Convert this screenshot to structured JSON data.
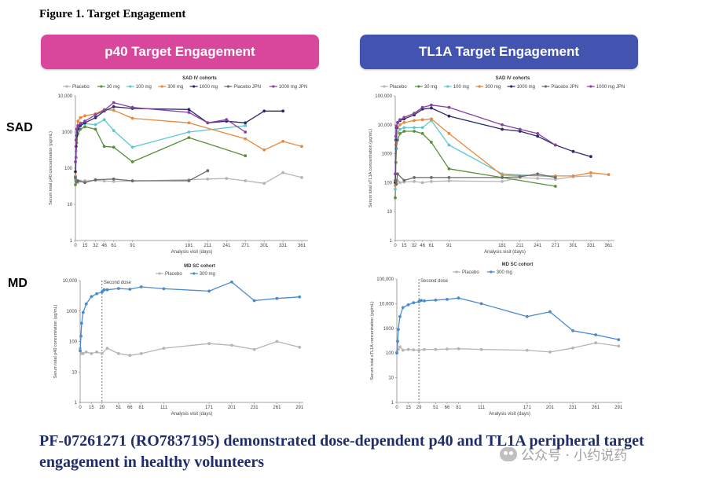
{
  "figure_title": "Figure 1. Target Engagement",
  "banners": {
    "p40": {
      "label": "p40 Target Engagement",
      "color": "#d9479d"
    },
    "tl1a": {
      "label": "TL1A Target Engagement",
      "color": "#4254b0"
    }
  },
  "row_labels": {
    "sad": "SAD",
    "md": "MD"
  },
  "footer": "PF-07261271 (RO7837195) demonstrated dose-dependent p40 and TL1A peripheral target engagement in healthy volunteers",
  "watermark": "公众号 · 小约说药",
  "chart_data": [
    {
      "id": "p40-sad",
      "type": "line",
      "title": "SAD IV cohorts",
      "xlabel": "Analysis visit (days)",
      "ylabel": "Serum total p40 concentration (pg/mL)",
      "y_scale": "log",
      "ylim": [
        1,
        10000
      ],
      "yticks": [
        1,
        10,
        100,
        1000,
        10000
      ],
      "ytick_labels": [
        "1",
        "10",
        "100",
        "1000",
        "10,000"
      ],
      "xlim": [
        0,
        371
      ],
      "xticks": [
        0,
        15,
        32,
        46,
        61,
        91,
        181,
        211,
        241,
        271,
        301,
        331,
        361
      ],
      "grid": false,
      "legend": "top",
      "series": [
        {
          "name": "Placebo",
          "color": "#b5b5b5",
          "x": [
            0,
            1,
            2,
            4,
            8,
            15,
            32,
            46,
            61,
            91,
            181,
            211,
            241,
            271,
            301,
            331,
            361
          ],
          "y": [
            45,
            48,
            42,
            40,
            44,
            45,
            46,
            44,
            43,
            44,
            48,
            50,
            52,
            45,
            38,
            75,
            55
          ]
        },
        {
          "name": "30 mg",
          "color": "#5b8f3a",
          "x": [
            0,
            1,
            2,
            4,
            8,
            15,
            32,
            46,
            61,
            91,
            181,
            271
          ],
          "y": [
            35,
            200,
            500,
            900,
            1200,
            1400,
            1200,
            400,
            380,
            150,
            700,
            220
          ]
        },
        {
          "name": "100 mg",
          "color": "#5cc8cf",
          "x": [
            0,
            1,
            2,
            4,
            8,
            15,
            32,
            46,
            61,
            91,
            181,
            271
          ],
          "y": [
            50,
            300,
            800,
            1400,
            1800,
            1700,
            1600,
            2200,
            1100,
            380,
            1000,
            1500
          ]
        },
        {
          "name": "300 mg",
          "color": "#e8883a",
          "x": [
            0,
            1,
            2,
            4,
            8,
            15,
            32,
            46,
            61,
            91,
            181,
            271,
            301,
            331,
            361
          ],
          "y": [
            60,
            400,
            1200,
            2000,
            2500,
            2800,
            3200,
            4200,
            4000,
            2400,
            1800,
            650,
            320,
            550,
            400
          ]
        },
        {
          "name": "1000 mg",
          "color": "#2a2a6a",
          "x": [
            0,
            1,
            2,
            4,
            8,
            15,
            32,
            46,
            61,
            91,
            181,
            211,
            241,
            271,
            301,
            331
          ],
          "y": [
            80,
            400,
            800,
            1200,
            1500,
            1800,
            2500,
            3800,
            5000,
            4500,
            4200,
            1800,
            2000,
            1800,
            3800,
            3800
          ]
        },
        {
          "name": "Placebo JPN",
          "color": "#6b6b6b",
          "x": [
            0,
            2,
            4,
            15,
            32,
            61,
            91,
            181,
            211
          ],
          "y": [
            55,
            42,
            45,
            40,
            48,
            50,
            45,
            45,
            85
          ]
        },
        {
          "name": "1000 mg JPN",
          "color": "#8a3fa0",
          "x": [
            0,
            1,
            2,
            4,
            8,
            15,
            32,
            46,
            61,
            91,
            181,
            211,
            241,
            271
          ],
          "y": [
            150,
            600,
            1200,
            1500,
            1700,
            2000,
            3000,
            4000,
            6500,
            4800,
            3500,
            1800,
            2200,
            1000
          ]
        }
      ]
    },
    {
      "id": "tl1a-sad",
      "type": "line",
      "title": "SAD IV cohorts",
      "xlabel": "Analysis visit (days)",
      "ylabel": "Serum total sTL1A concentration (pg/mL)",
      "y_scale": "log",
      "ylim": [
        1,
        100000
      ],
      "yticks": [
        1,
        10,
        100,
        1000,
        10000,
        100000
      ],
      "ytick_labels": [
        "1",
        "10",
        "100",
        "1000",
        "10,000",
        "100,000"
      ],
      "xlim": [
        0,
        371
      ],
      "xticks": [
        0,
        15,
        32,
        46,
        61,
        91,
        181,
        211,
        241,
        271,
        301,
        331,
        361
      ],
      "grid": false,
      "legend": "top",
      "series": [
        {
          "name": "Placebo",
          "color": "#b5b5b5",
          "x": [
            0,
            1,
            2,
            4,
            8,
            15,
            32,
            46,
            61,
            91,
            181,
            211,
            241,
            271,
            301,
            331
          ],
          "y": [
            100,
            110,
            120,
            115,
            100,
            105,
            110,
            100,
            110,
            115,
            110,
            150,
            140,
            130,
            160,
            170
          ]
        },
        {
          "name": "30 mg",
          "color": "#5b8f3a",
          "x": [
            0,
            1,
            2,
            4,
            8,
            15,
            32,
            46,
            61,
            91,
            181,
            271
          ],
          "y": [
            30,
            500,
            1500,
            3000,
            5000,
            6000,
            6000,
            5000,
            2500,
            300,
            150,
            75
          ]
        },
        {
          "name": "100 mg",
          "color": "#5cc8cf",
          "x": [
            0,
            1,
            2,
            4,
            8,
            15,
            32,
            46,
            61,
            91,
            181,
            271
          ],
          "y": [
            60,
            1500,
            3500,
            5500,
            7000,
            8000,
            8000,
            8000,
            14000,
            2000,
            200,
            160
          ]
        },
        {
          "name": "300 mg",
          "color": "#e8883a",
          "x": [
            0,
            1,
            2,
            4,
            8,
            15,
            32,
            46,
            61,
            91,
            181,
            271,
            301,
            331,
            361
          ],
          "y": [
            80,
            2000,
            5000,
            8000,
            10000,
            12000,
            14000,
            15000,
            16000,
            5000,
            180,
            170,
            170,
            220,
            190
          ]
        },
        {
          "name": "1000 mg",
          "color": "#2a2a6a",
          "x": [
            0,
            1,
            2,
            4,
            8,
            15,
            32,
            46,
            61,
            91,
            181,
            211,
            241,
            271,
            301,
            331
          ],
          "y": [
            100,
            3000,
            8000,
            12000,
            14000,
            16000,
            22000,
            35000,
            38000,
            20000,
            7000,
            6000,
            4000,
            2000,
            1200,
            800
          ]
        },
        {
          "name": "Placebo JPN",
          "color": "#6b6b6b",
          "x": [
            0,
            2,
            4,
            15,
            32,
            61,
            91,
            181,
            211,
            241,
            271
          ],
          "y": [
            120,
            90,
            200,
            120,
            150,
            150,
            150,
            150,
            160,
            200,
            150
          ]
        },
        {
          "name": "1000 mg JPN",
          "color": "#8a3fa0",
          "x": [
            0,
            1,
            2,
            4,
            8,
            15,
            32,
            46,
            61,
            91,
            181,
            211,
            241,
            271
          ],
          "y": [
            200,
            4000,
            9000,
            12000,
            15000,
            18000,
            25000,
            40000,
            48000,
            40000,
            10000,
            7000,
            5000,
            2000
          ]
        }
      ]
    },
    {
      "id": "p40-md",
      "type": "line",
      "title": "MD SC cohort",
      "xlabel": "Analysis visit (days)",
      "ylabel": "Serum total p40 concentration (pg/mL)",
      "y_scale": "log",
      "ylim": [
        1,
        10000
      ],
      "yticks": [
        1,
        10,
        100,
        1000,
        10000
      ],
      "ytick_labels": [
        "1",
        "10",
        "100",
        "1000",
        "10,000"
      ],
      "xlim": [
        0,
        296
      ],
      "xticks": [
        0,
        15,
        29,
        51,
        66,
        81,
        111,
        171,
        201,
        231,
        261,
        291
      ],
      "x_label_every_other": true,
      "grid": false,
      "legend": "top",
      "annotation": {
        "label": "Second dose",
        "x": 29
      },
      "series": [
        {
          "name": "Placebo",
          "color": "#b5b5b5",
          "x": [
            0,
            2,
            4,
            8,
            15,
            22,
            29,
            36,
            51,
            66,
            81,
            111,
            171,
            201,
            231,
            261,
            291
          ],
          "y": [
            60,
            40,
            40,
            45,
            40,
            45,
            40,
            60,
            40,
            35,
            40,
            60,
            85,
            75,
            55,
            100,
            65
          ]
        },
        {
          "name": "300 mg",
          "color": "#4a8ad0",
          "x": [
            0,
            1,
            2,
            4,
            8,
            15,
            22,
            29,
            30,
            32,
            36,
            51,
            66,
            81,
            111,
            171,
            201,
            231,
            261,
            291
          ],
          "y": [
            50,
            150,
            400,
            900,
            1700,
            3000,
            3700,
            4200,
            4600,
            5000,
            5000,
            5500,
            5200,
            6200,
            5400,
            4500,
            9000,
            2200,
            2600,
            2900
          ]
        }
      ]
    },
    {
      "id": "tl1a-md",
      "type": "line",
      "title": "MD SC cohort",
      "xlabel": "Analysis visit (days)",
      "ylabel": "Serum total sTL1A concentration (pg/mL)",
      "y_scale": "log",
      "ylim": [
        1,
        100000
      ],
      "yticks": [
        1,
        10,
        100,
        1000,
        10000,
        100000
      ],
      "ytick_labels": [
        "1",
        "10",
        "100",
        "1000",
        "10,000",
        "100,000"
      ],
      "xlim": [
        0,
        296
      ],
      "xticks": [
        0,
        15,
        29,
        51,
        66,
        81,
        111,
        171,
        201,
        231,
        261,
        291
      ],
      "x_label_every_other": true,
      "grid": false,
      "legend": "top",
      "annotation": {
        "label": "Second dose",
        "x": 29
      },
      "series": [
        {
          "name": "Placebo",
          "color": "#b5b5b5",
          "x": [
            0,
            2,
            4,
            8,
            15,
            22,
            29,
            36,
            51,
            66,
            81,
            111,
            171,
            201,
            231,
            261,
            291
          ],
          "y": [
            110,
            140,
            180,
            130,
            140,
            135,
            130,
            140,
            140,
            145,
            150,
            140,
            130,
            110,
            160,
            260,
            190
          ]
        },
        {
          "name": "300 mg",
          "color": "#4a8ad0",
          "x": [
            0,
            1,
            2,
            4,
            8,
            15,
            22,
            29,
            30,
            32,
            36,
            51,
            66,
            81,
            111,
            171,
            201,
            231,
            261,
            291
          ],
          "y": [
            100,
            300,
            900,
            3000,
            7000,
            9000,
            11000,
            12000,
            13000,
            13500,
            13000,
            14000,
            15000,
            17000,
            10000,
            3000,
            4700,
            800,
            550,
            350
          ]
        }
      ]
    }
  ]
}
